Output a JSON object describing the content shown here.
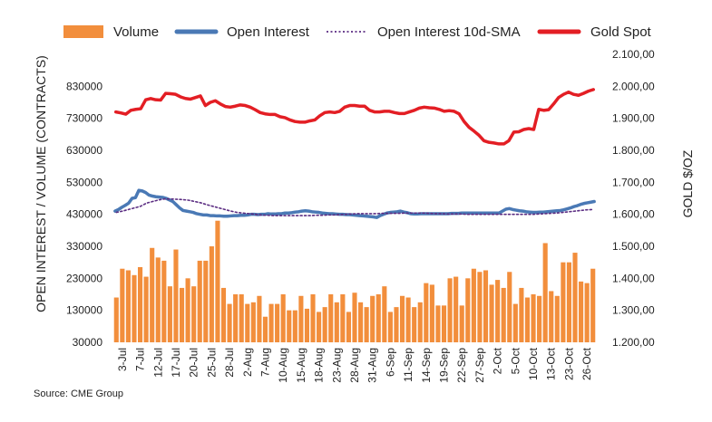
{
  "source_label": "Source: CME Group",
  "chart_data": {
    "type": "bar",
    "legend_position": "top",
    "grid": false,
    "y_left_label": "OPEN INTEREST / VOLUME (CONTRACTS)",
    "y_right_label": "GOLD $/OZ",
    "y_left_ticks": [
      "30000",
      "130000",
      "230000",
      "330000",
      "430000",
      "530000",
      "630000",
      "730000",
      "830000"
    ],
    "y_left_lim": [
      30000,
      930000
    ],
    "y_right_ticks": [
      "1.200,00",
      "1.300,00",
      "1.400,00",
      "1.500,00",
      "1.600,00",
      "1.700,00",
      "1.800,00",
      "1.900,00",
      "2.000,00",
      "2.100,00"
    ],
    "y_right_lim": [
      1200,
      2100
    ],
    "x_tick_labels": [
      "3-Jul",
      "7-Jul",
      "12-Jul",
      "17-Jul",
      "20-Jul",
      "25-Jul",
      "28-Jul",
      "2-Aug",
      "7-Aug",
      "10-Aug",
      "15-Aug",
      "18-Aug",
      "23-Aug",
      "28-Aug",
      "31-Aug",
      "6-Sep",
      "11-Sep",
      "14-Sep",
      "19-Sep",
      "22-Sep",
      "27-Sep",
      "2-Oct",
      "5-Oct",
      "10-Oct",
      "13-Oct",
      "23-Oct",
      "26-Oct"
    ],
    "series": [
      {
        "name": "Volume",
        "kind": "bar",
        "axis": "left",
        "color": "#F28E3C",
        "values": [
          170000,
          260000,
          255000,
          240000,
          265000,
          235000,
          325000,
          295000,
          285000,
          205000,
          320000,
          200000,
          230000,
          205000,
          285000,
          285000,
          330000,
          410000,
          200000,
          150000,
          180000,
          180000,
          150000,
          155000,
          175000,
          110000,
          150000,
          150000,
          180000,
          130000,
          130000,
          175000,
          135000,
          180000,
          125000,
          140000,
          180000,
          155000,
          180000,
          125000,
          185000,
          155000,
          140000,
          175000,
          180000,
          205000,
          125000,
          140000,
          175000,
          170000,
          140000,
          155000,
          215000,
          210000,
          145000,
          145000,
          230000,
          235000,
          145000,
          230000,
          260000,
          250000,
          255000,
          210000,
          225000,
          200000,
          250000,
          150000,
          200000,
          170000,
          180000,
          175000,
          340000,
          190000,
          175000,
          280000,
          280000,
          310000,
          220000,
          215000,
          260000
        ]
      },
      {
        "name": "Open Interest",
        "kind": "line",
        "axis": "left",
        "color": "#4A79B5",
        "values": [
          440000,
          445000,
          452000,
          458000,
          465000,
          480000,
          482000,
          505000,
          503000,
          498000,
          490000,
          487000,
          485000,
          484000,
          483000,
          480000,
          475000,
          470000,
          460000,
          450000,
          442000,
          440000,
          438000,
          436000,
          432000,
          430000,
          428000,
          428000,
          426000,
          426000,
          425000,
          425000,
          424000,
          424000,
          425000,
          426000,
          426000,
          427000,
          427000,
          428000,
          430000,
          430000,
          429000,
          430000,
          430000,
          432000,
          431000,
          431000,
          432000,
          432000,
          434000,
          434000,
          435000,
          437000,
          438000,
          440000,
          441000,
          440000,
          438000,
          437000,
          436000,
          434000,
          433000,
          432000,
          432000,
          431000,
          430000,
          430000,
          429000,
          429000,
          428000,
          427000,
          426000,
          425000,
          424000,
          423000,
          422000,
          420000,
          426000,
          430000,
          434000,
          436000,
          437000,
          438000,
          440000,
          437000,
          435000,
          432000,
          431000,
          431000,
          432000,
          432000,
          432000,
          432000,
          432000,
          432000,
          432000,
          432000,
          432000,
          433000,
          433000,
          433000,
          434000,
          434000,
          434000,
          434000,
          434000,
          434000,
          434000,
          434000,
          434000,
          434000,
          434000,
          434000,
          440000,
          446000,
          448000,
          445000,
          443000,
          441000,
          440000,
          438000,
          437000,
          436000,
          436000,
          437000,
          437000,
          438000,
          439000,
          440000,
          441000,
          442000,
          444000,
          447000,
          450000,
          454000,
          457000,
          461000,
          464000,
          466000,
          468000,
          470000
        ]
      },
      {
        "name": "Open Interest 10d-SMA",
        "kind": "line",
        "axis": "left",
        "color": "#5B2D82",
        "values": [
          436000,
          440000,
          445000,
          450000,
          455000,
          465000,
          470000,
          475000,
          478000,
          478000,
          477000,
          476000,
          474000,
          470000,
          466000,
          460000,
          455000,
          450000,
          445000,
          440000,
          436000,
          434000,
          432000,
          430000,
          428000,
          427000,
          426000,
          426000,
          426000,
          426000,
          426000,
          426000,
          426000,
          427000,
          427000,
          428000,
          428000,
          429000,
          430000,
          431000,
          432000,
          432000,
          432000,
          432000,
          433000,
          433000,
          433000,
          433000,
          434000,
          434000,
          434000,
          434000,
          433000,
          432000,
          432000,
          431000,
          431000,
          431000,
          430000,
          430000,
          430000,
          430000,
          430000,
          430000,
          430000,
          430000,
          430000,
          430000,
          430000,
          430000,
          431000,
          432000,
          433000,
          434000,
          436000,
          438000,
          440000,
          442000,
          444000,
          445000
        ]
      },
      {
        "name": "Gold Spot",
        "kind": "line",
        "axis": "right",
        "color": "#E31E24",
        "values": [
          1920,
          1917,
          1913,
          1925,
          1928,
          1930,
          1958,
          1962,
          1958,
          1957,
          1978,
          1977,
          1975,
          1967,
          1962,
          1960,
          1965,
          1970,
          1940,
          1950,
          1955,
          1945,
          1937,
          1935,
          1938,
          1942,
          1940,
          1935,
          1927,
          1918,
          1914,
          1912,
          1912,
          1905,
          1902,
          1895,
          1890,
          1888,
          1888,
          1892,
          1895,
          1908,
          1918,
          1920,
          1918,
          1922,
          1935,
          1940,
          1940,
          1938,
          1938,
          1925,
          1920,
          1920,
          1922,
          1922,
          1918,
          1915,
          1915,
          1920,
          1925,
          1932,
          1935,
          1933,
          1932,
          1928,
          1922,
          1924,
          1922,
          1914,
          1890,
          1872,
          1860,
          1847,
          1830,
          1825,
          1823,
          1820,
          1820,
          1830,
          1857,
          1858,
          1865,
          1868,
          1865,
          1928,
          1925,
          1927,
          1945,
          1965,
          1975,
          1982,
          1975,
          1972,
          1978,
          1985,
          1990
        ]
      }
    ]
  }
}
